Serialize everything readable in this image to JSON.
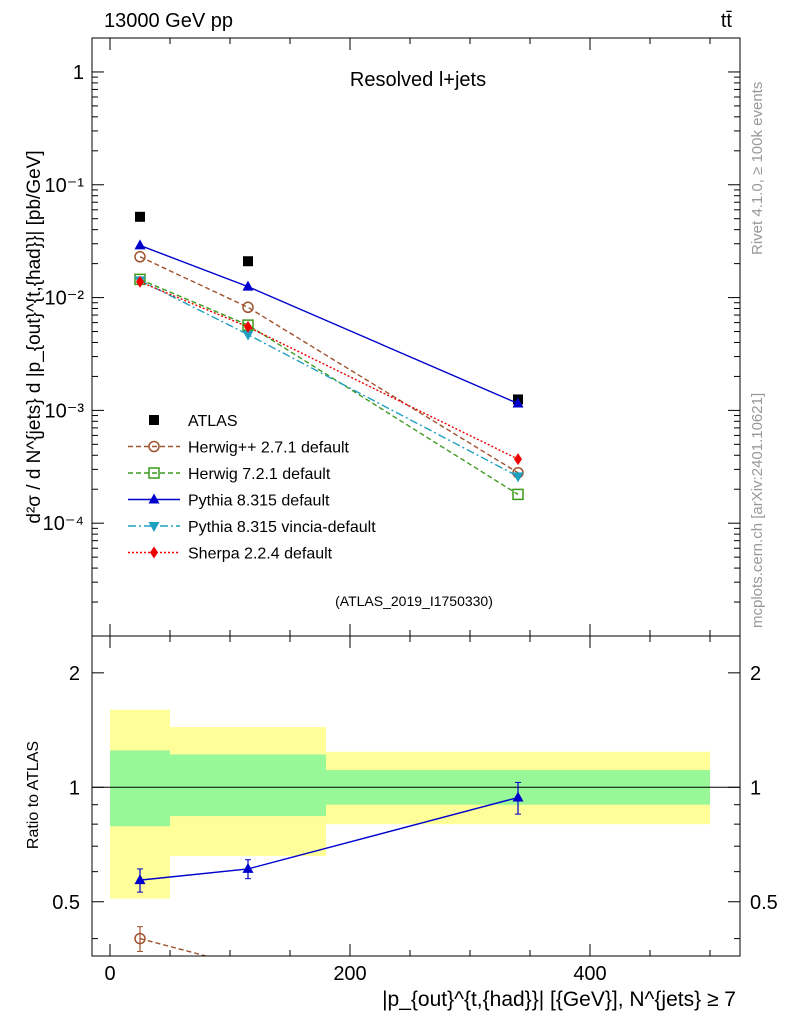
{
  "header": {
    "left_label": "13000 GeV pp",
    "right_label": "tt̄"
  },
  "side": {
    "top_text": "Rivet 4.1.0, ≥ 100k events",
    "bottom_text": "mcplots.cern.ch [arXiv:2401.10621]"
  },
  "colors": {
    "atlas": "#000000",
    "herwigpp": "#a0522d",
    "herwig7": "#3a9a1a",
    "pythia": "#0000cc",
    "vincia": "#1fa0c0",
    "sherpa": "#ee0000",
    "band_inner": "#98f898",
    "band_outer": "#ffff99"
  },
  "chart_data": [
    {
      "type": "scatter",
      "title": "Resolved l+jets",
      "watermark": "(ATLAS_2019_I1750330)",
      "ylabel": "d²σ / d N^{jets} d |p_{out}^{t,{had}}| [pb/GeV]",
      "yscale": "log",
      "ylim": [
        1e-05,
        2
      ],
      "y_ticks": [
        {
          "value": 1,
          "label": "1"
        },
        {
          "value": 0.1,
          "label": "10⁻¹"
        },
        {
          "value": 0.01,
          "label": "10⁻²"
        },
        {
          "value": 0.001,
          "label": "10⁻³"
        },
        {
          "value": 0.0001,
          "label": "10⁻⁴"
        }
      ],
      "xlim": [
        -15,
        525
      ],
      "x": [
        25,
        115,
        340
      ],
      "series": [
        {
          "name": "ATLAS",
          "key": "atlas",
          "values": [
            0.052,
            0.021,
            0.00125
          ]
        },
        {
          "name": "Herwig++ 2.7.1 default",
          "key": "herwigpp",
          "values": [
            0.023,
            0.0082,
            0.00028
          ]
        },
        {
          "name": "Herwig 7.2.1 default",
          "key": "herwig7",
          "values": [
            0.0145,
            0.0057,
            0.00018
          ]
        },
        {
          "name": "Pythia 8.315 default",
          "key": "pythia",
          "values": [
            0.029,
            0.0125,
            0.00115
          ]
        },
        {
          "name": "Pythia 8.315 vincia-default",
          "key": "vincia",
          "values": [
            0.0142,
            0.0047,
            0.00026
          ]
        },
        {
          "name": "Sherpa 2.2.4 default",
          "key": "sherpa",
          "values": [
            0.0138,
            0.0055,
            0.00037
          ]
        }
      ]
    },
    {
      "type": "line",
      "ylabel": "Ratio to ATLAS",
      "xlabel": "|p_{out}^{t,{had}}| [{GeV}], N^{jets} ≥ 7",
      "yscale": "log",
      "ylim": [
        0.36,
        2.5
      ],
      "y_ticks": [
        {
          "value": 0.5,
          "label": "0.5"
        },
        {
          "value": 1,
          "label": "1"
        },
        {
          "value": 2,
          "label": "2"
        }
      ],
      "x_ticks": [
        {
          "value": 0,
          "label": "0"
        },
        {
          "value": 200,
          "label": "200"
        },
        {
          "value": 400,
          "label": "400"
        }
      ],
      "xlim": [
        -15,
        525
      ],
      "bins": [
        {
          "lo": 0,
          "hi": 50,
          "inner": [
            0.79,
            1.25
          ],
          "outer": [
            0.51,
            1.6
          ]
        },
        {
          "lo": 50,
          "hi": 180,
          "inner": [
            0.84,
            1.22
          ],
          "outer": [
            0.66,
            1.44
          ]
        },
        {
          "lo": 180,
          "hi": 500,
          "inner": [
            0.9,
            1.11
          ],
          "outer": [
            0.8,
            1.24
          ]
        }
      ],
      "series": [
        {
          "name": "Pythia 8.315 default",
          "key": "pythia",
          "x": [
            25,
            115,
            340
          ],
          "values": [
            0.57,
            0.61,
            0.94
          ],
          "err": [
            0.04,
            0.035,
            0.09
          ]
        },
        {
          "name": "Herwig++ 2.7.1 default",
          "key": "herwigpp",
          "x": [
            25,
            80
          ],
          "values": [
            0.4,
            0.36
          ],
          "err": [
            0.03,
            0
          ]
        }
      ]
    }
  ]
}
